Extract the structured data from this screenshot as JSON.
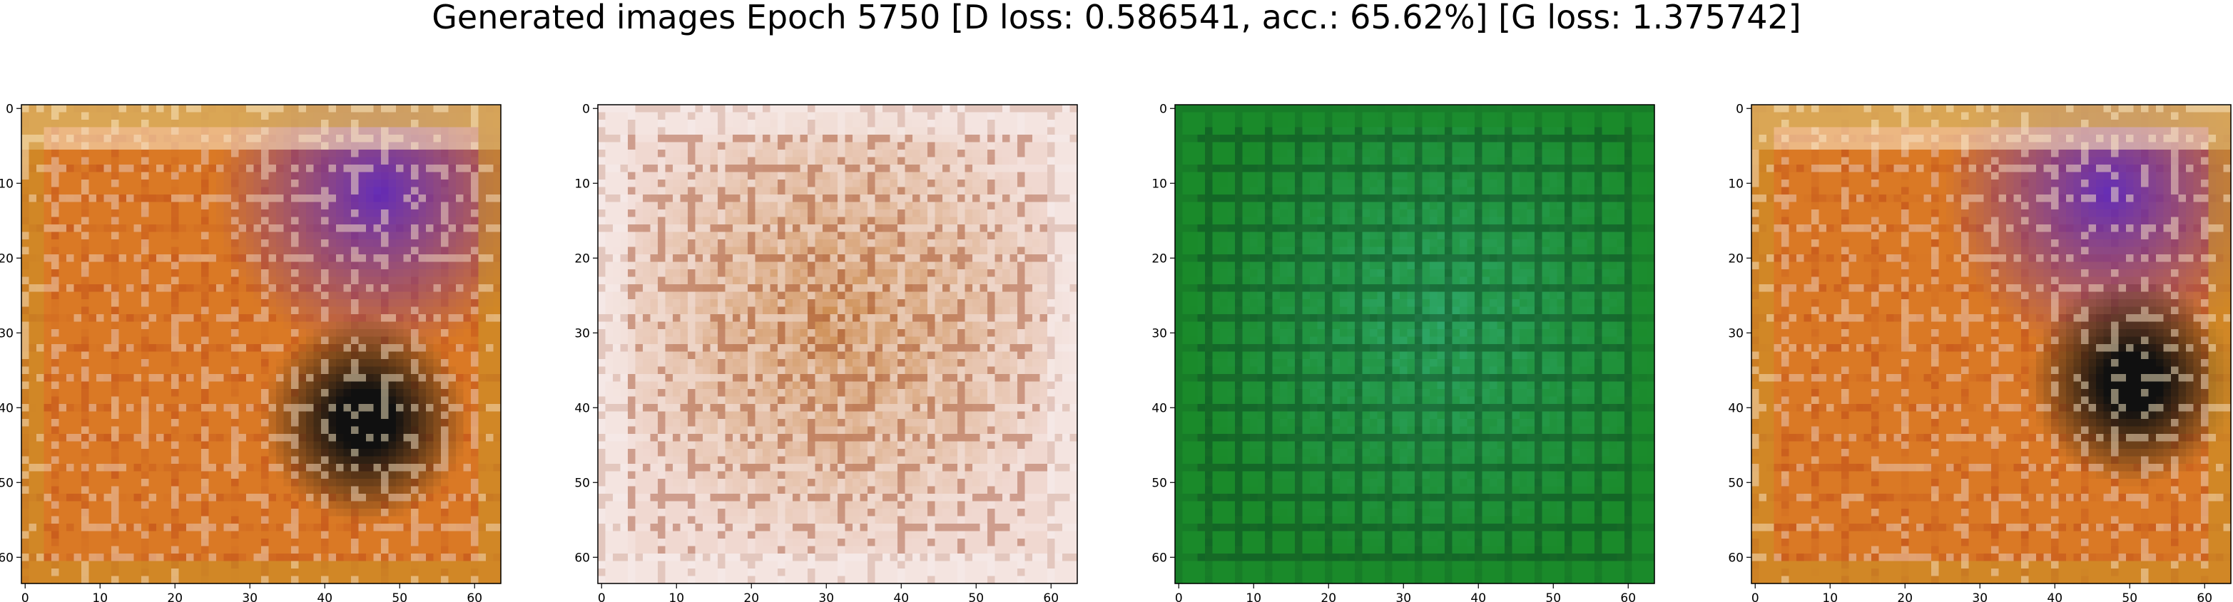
{
  "figure": {
    "title": "Generated images Epoch 5750 [D loss: 0.586541, acc.: 65.62%] [G loss: 1.375742]"
  },
  "chart_data": [
    {
      "type": "heatmap",
      "description_of_content": "generated 64x64 RGB image, warm orange/red/yellow with blue-purple top-right and dark blob bottom-right",
      "palette": [
        "#f0a030",
        "#b03010",
        "#5020d0",
        "#101010",
        "#f8e0c0"
      ],
      "xlim": [
        0,
        63
      ],
      "ylim": [
        63,
        0
      ],
      "xticks": [
        0,
        10,
        20,
        30,
        40,
        50,
        60
      ],
      "yticks": [
        0,
        10,
        20,
        30,
        40,
        50,
        60
      ]
    },
    {
      "type": "heatmap",
      "description_of_content": "generated 64x64 RGB image, pale pink/cream with brown-orange center grid",
      "palette": [
        "#f0d8d0",
        "#c07020",
        "#e8c8a0",
        "#903010",
        "#f8f0f0"
      ],
      "xlim": [
        0,
        63
      ],
      "ylim": [
        63,
        0
      ],
      "xticks": [
        0,
        10,
        20,
        30,
        40,
        50,
        60
      ],
      "yticks": [
        0,
        10,
        20,
        30,
        40,
        50,
        60
      ]
    },
    {
      "type": "heatmap",
      "description_of_content": "generated 64x64 RGB image, green and teal grid with dark lines",
      "palette": [
        "#1a8a2a",
        "#30b070",
        "#104020",
        "#40c0a0",
        "#0a3a20"
      ],
      "xlim": [
        0,
        63
      ],
      "ylim": [
        63,
        0
      ],
      "xticks": [
        0,
        10,
        20,
        30,
        40,
        50,
        60
      ],
      "yticks": [
        0,
        10,
        20,
        30,
        40,
        50,
        60
      ]
    },
    {
      "type": "heatmap",
      "description_of_content": "generated 64x64 RGB image, warm orange/red/yellow with blue-purple top-right and dark blob right",
      "palette": [
        "#f0a030",
        "#b03010",
        "#5020d0",
        "#101010",
        "#f8e0c0"
      ],
      "xlim": [
        0,
        63
      ],
      "ylim": [
        63,
        0
      ],
      "xticks": [
        0,
        10,
        20,
        30,
        40,
        50,
        60
      ],
      "yticks": [
        0,
        10,
        20,
        30,
        40,
        50,
        60
      ]
    }
  ]
}
